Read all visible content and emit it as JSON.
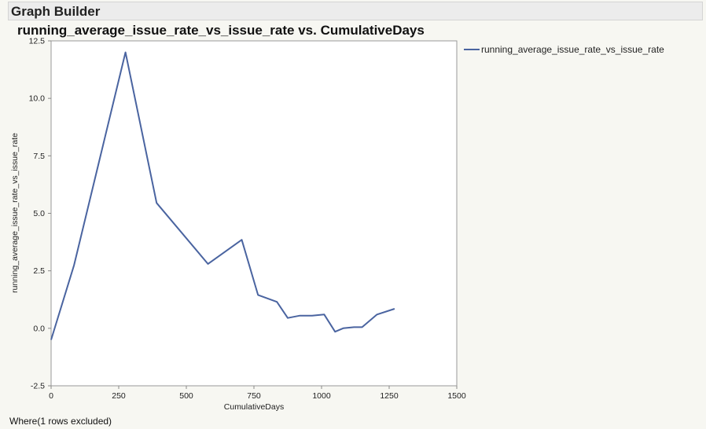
{
  "window": {
    "title": "Graph Builder"
  },
  "footer": {
    "text": "Where(1 rows excluded)"
  },
  "colors": {
    "series": "#4a64a0",
    "plot_bg": "#ffffff",
    "axis": "#888888"
  },
  "chart_data": {
    "type": "line",
    "title": "running_average_issue_rate_vs_issue_rate vs. CumulativeDays",
    "xlabel": "CumulativeDays",
    "ylabel": "running_average_issue_rate_vs_issue_rate",
    "xlim": [
      0,
      1500
    ],
    "ylim": [
      -2.5,
      12.5
    ],
    "xticks": [
      "0",
      "250",
      "500",
      "750",
      "1000",
      "1250",
      "1500"
    ],
    "yticks": [
      "-2.5",
      "0.0",
      "2.5",
      "5.0",
      "7.5",
      "10.0",
      "12.5"
    ],
    "grid": false,
    "legend_position": "right",
    "series": [
      {
        "name": "running_average_issue_rate_vs_issue_rate",
        "x": [
          0,
          85,
          275,
          390,
          580,
          705,
          765,
          835,
          875,
          920,
          965,
          1010,
          1050,
          1080,
          1120,
          1150,
          1205,
          1270
        ],
        "y": [
          -0.5,
          2.75,
          12.0,
          5.45,
          2.8,
          3.85,
          1.45,
          1.15,
          0.45,
          0.55,
          0.55,
          0.6,
          -0.15,
          0.0,
          0.05,
          0.05,
          0.6,
          0.85
        ]
      }
    ]
  }
}
